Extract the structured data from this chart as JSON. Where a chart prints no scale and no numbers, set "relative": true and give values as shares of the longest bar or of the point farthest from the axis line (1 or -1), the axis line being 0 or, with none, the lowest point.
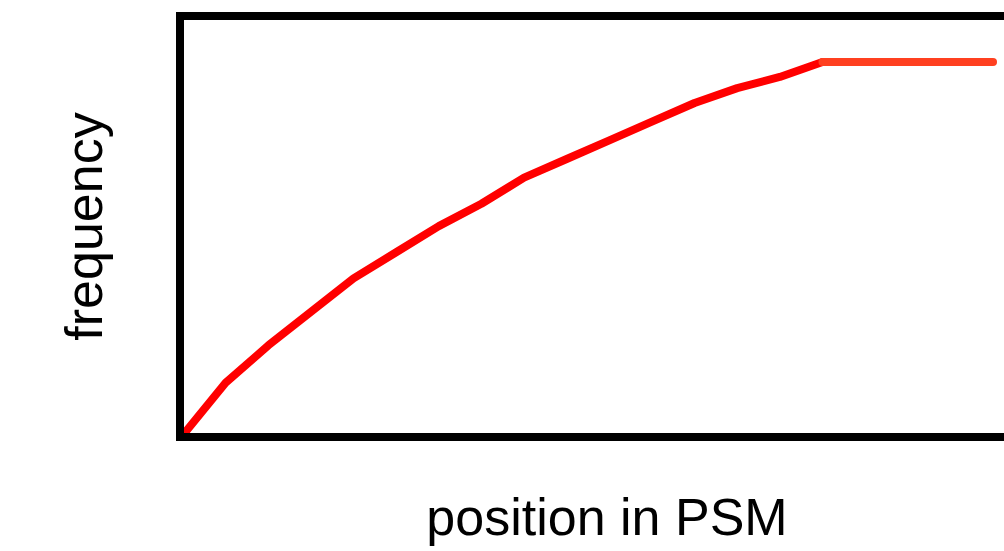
{
  "chart_data": {
    "type": "line",
    "relative": true,
    "xlabel": "position in PSM",
    "ylabel": "frequency",
    "categories": [
      null,
      null,
      null,
      null,
      null,
      null,
      null,
      null,
      null,
      null,
      null,
      null,
      null,
      null,
      null,
      null,
      null,
      null,
      null,
      null
    ],
    "series": [
      {
        "color": "#ff0000",
        "values": [
          0,
          0.14,
          0.24,
          0.33,
          0.42,
          0.49,
          0.56,
          0.62,
          0.69,
          0.74,
          0.79,
          0.84,
          0.89,
          0.93,
          0.96,
          1,
          null,
          null,
          null,
          null
        ]
      },
      {
        "color": "#ff4020",
        "values": [
          null,
          null,
          null,
          null,
          null,
          null,
          null,
          null,
          null,
          null,
          null,
          null,
          null,
          null,
          null,
          1,
          1,
          1,
          1,
          1
        ]
      }
    ],
    "marker": "none",
    "line_style": "solid"
  }
}
